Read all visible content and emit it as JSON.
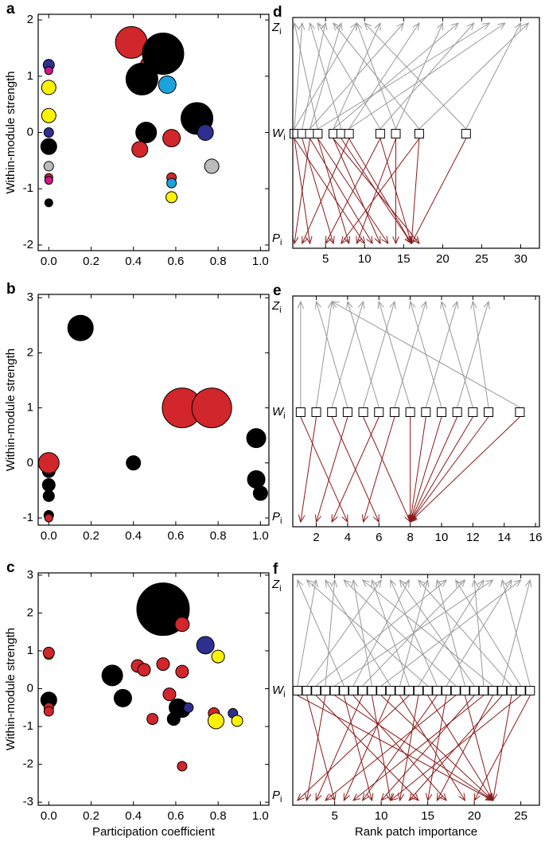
{
  "chart_data": [
    {
      "type": "scatter",
      "panel_label": "a",
      "y_label": "Within-module strength",
      "xlim": [
        -0.05,
        1.04
      ],
      "ylim": [
        -2.1,
        2.1
      ],
      "xticks": [
        {
          "value": 0,
          "label": "0.0"
        },
        {
          "value": 0.2,
          "label": "0.2"
        },
        {
          "value": 0.4,
          "label": "0.4"
        },
        {
          "value": 0.6,
          "label": "0.6"
        },
        {
          "value": 0.8,
          "label": "0.8"
        },
        {
          "value": 1,
          "label": "1.0"
        }
      ],
      "yticks": [
        -2,
        -1,
        0,
        1,
        2
      ],
      "x": [
        0.0,
        0.0,
        0.0,
        0.0,
        0.0,
        0.0,
        0.0,
        0.0,
        0.0,
        0.0,
        0.39,
        0.47,
        0.54,
        0.44,
        0.56,
        0.46,
        0.43,
        0.58,
        0.7,
        0.74,
        0.77,
        0.58,
        0.58,
        0.58
      ],
      "y": [
        1.2,
        1.1,
        0.8,
        0.3,
        0.0,
        -0.25,
        -0.6,
        -0.8,
        -0.85,
        -1.25,
        1.6,
        1.2,
        1.4,
        0.95,
        0.85,
        0.0,
        -0.3,
        -0.1,
        0.25,
        0.0,
        -0.6,
        -0.8,
        -0.9,
        -1.15
      ],
      "size": [
        7,
        5,
        9,
        9,
        6,
        10,
        6,
        5,
        5,
        5,
        20,
        10,
        26,
        20,
        11,
        13,
        10,
        11,
        20,
        10,
        9,
        6,
        6,
        7
      ],
      "colors": [
        "#2e2f8f",
        "#d4148c",
        "#fff200",
        "#fff200",
        "#2e2f8f",
        "#000000",
        "#bbbbbb",
        "#d1262b",
        "#d4148c",
        "#000000",
        "#d1262b",
        "#d1262b",
        "#000000",
        "#000000",
        "#1ca3dd",
        "#000000",
        "#d1262b",
        "#d1262b",
        "#000000",
        "#2e2f8f",
        "#bbbbbb",
        "#d1262b",
        "#1ca3dd",
        "#fff200"
      ]
    },
    {
      "type": "scatter",
      "panel_label": "b",
      "y_label": "Within-module strength",
      "xlim": [
        -0.05,
        1.04
      ],
      "ylim": [
        -1.13,
        3.06
      ],
      "xticks": [
        {
          "value": 0,
          "label": "0.0"
        },
        {
          "value": 0.2,
          "label": "0.2"
        },
        {
          "value": 0.4,
          "label": "0.4"
        },
        {
          "value": 0.6,
          "label": "0.6"
        },
        {
          "value": 0.8,
          "label": "0.8"
        },
        {
          "value": 1,
          "label": "1.0"
        }
      ],
      "yticks": [
        -1,
        0,
        1,
        2,
        3
      ],
      "x": [
        0.0,
        0.0,
        0.0,
        0.0,
        0.0,
        0.0,
        0.15,
        0.63,
        0.77,
        0.4,
        0.98,
        0.98,
        1.0
      ],
      "y": [
        -0.15,
        -0.4,
        -0.6,
        -0.95,
        0.0,
        -1.0,
        2.45,
        1.0,
        1.0,
        0.0,
        0.45,
        -0.3,
        -0.55
      ],
      "size": [
        8,
        8,
        7,
        6,
        13,
        5,
        16,
        25,
        25,
        9,
        12,
        11,
        9
      ],
      "colors": [
        "#000000",
        "#000000",
        "#000000",
        "#000000",
        "#d1262b",
        "#d1262b",
        "#000000",
        "#d1262b",
        "#d1262b",
        "#000000",
        "#000000",
        "#000000",
        "#000000"
      ]
    },
    {
      "type": "scatter",
      "panel_label": "c",
      "y_label": "Within-module strength",
      "x_label": "Participation coefficient",
      "xlim": [
        -0.05,
        1.04
      ],
      "ylim": [
        -3.08,
        3.06
      ],
      "xticks": [
        {
          "value": 0,
          "label": "0.0"
        },
        {
          "value": 0.2,
          "label": "0.2"
        },
        {
          "value": 0.4,
          "label": "0.4"
        },
        {
          "value": 0.6,
          "label": "0.6"
        },
        {
          "value": 0.8,
          "label": "0.8"
        },
        {
          "value": 1,
          "label": "1.0"
        }
      ],
      "yticks": [
        -3,
        -2,
        -1,
        0,
        1,
        2,
        3
      ],
      "x": [
        0.0,
        0.0,
        0.0,
        0.0,
        0.0,
        0.54,
        0.63,
        0.74,
        0.8,
        0.3,
        0.35,
        0.42,
        0.45,
        0.54,
        0.63,
        0.57,
        0.61,
        0.63,
        0.66,
        0.59,
        0.49,
        0.78,
        0.79,
        0.87,
        0.89,
        0.63
      ],
      "y": [
        0.9,
        0.95,
        -0.3,
        -0.5,
        -0.6,
        2.1,
        1.7,
        1.15,
        0.85,
        0.35,
        -0.25,
        0.6,
        0.5,
        0.65,
        0.45,
        -0.15,
        -0.5,
        -0.55,
        -0.5,
        -0.8,
        -0.8,
        -0.65,
        -0.85,
        -0.65,
        -0.85,
        -2.05
      ],
      "size": [
        6,
        7,
        10,
        6,
        6,
        33,
        9,
        11,
        8,
        13,
        11,
        8,
        8,
        8,
        8,
        8,
        11,
        10,
        6,
        8,
        7,
        7,
        10,
        6,
        7,
        6
      ],
      "colors": [
        "#fff200",
        "#d1262b",
        "#000000",
        "#d1262b",
        "#d1262b",
        "#000000",
        "#d1262b",
        "#2e2f8f",
        "#fff200",
        "#000000",
        "#000000",
        "#d1262b",
        "#d1262b",
        "#d1262b",
        "#d1262b",
        "#d1262b",
        "#000000",
        "#000000",
        "#2e2f8f",
        "#000000",
        "#d1262b",
        "#d1262b",
        "#fff200",
        "#2e2f8f",
        "#fff200",
        "#d1262b"
      ]
    },
    {
      "type": "network",
      "panel_label": "d",
      "row_labels": [
        {
          "main": "Z",
          "sub": "i"
        },
        {
          "main": "W",
          "sub": "i"
        },
        {
          "main": "P",
          "sub": "i"
        }
      ],
      "xlim": [
        0.8,
        32.4
      ],
      "xticks": [
        5,
        10,
        15,
        20,
        25,
        30
      ],
      "nodes": [
        1,
        2,
        3,
        4,
        6,
        7,
        8,
        12,
        14,
        17,
        23
      ],
      "z_edges": [
        [
          1,
          2
        ],
        [
          1,
          9
        ],
        [
          2,
          5
        ],
        [
          3,
          7
        ],
        [
          4,
          1
        ],
        [
          6,
          12
        ],
        [
          7,
          3
        ],
        [
          8,
          17
        ],
        [
          8,
          28
        ],
        [
          12,
          4
        ],
        [
          12,
          24
        ],
        [
          14,
          9
        ],
        [
          14,
          20
        ],
        [
          17,
          6
        ],
        [
          17,
          31
        ],
        [
          23,
          10
        ],
        [
          23,
          30
        ],
        [
          3,
          15
        ],
        [
          6,
          22
        ],
        [
          4,
          26
        ]
      ],
      "p_edges": [
        [
          1,
          3
        ],
        [
          2,
          6
        ],
        [
          3,
          1
        ],
        [
          4,
          8
        ],
        [
          6,
          12
        ],
        [
          7,
          16
        ],
        [
          8,
          2
        ],
        [
          8,
          16
        ],
        [
          12,
          5
        ],
        [
          12,
          16
        ],
        [
          14,
          14
        ],
        [
          14,
          9
        ],
        [
          17,
          16
        ],
        [
          17,
          7
        ],
        [
          23,
          16
        ],
        [
          3,
          11
        ],
        [
          6,
          17
        ],
        [
          4,
          13
        ],
        [
          1,
          10
        ]
      ]
    },
    {
      "type": "network",
      "panel_label": "e",
      "row_labels": [
        {
          "main": "Z",
          "sub": "i"
        },
        {
          "main": "W",
          "sub": "i"
        },
        {
          "main": "P",
          "sub": "i"
        }
      ],
      "xlim": [
        0.5,
        16.25
      ],
      "xticks": [
        2,
        4,
        6,
        8,
        10,
        12,
        14,
        16
      ],
      "nodes": [
        1,
        2,
        3,
        4,
        5,
        6,
        7,
        8,
        9,
        10,
        11,
        12,
        13,
        15
      ],
      "z_edges": [
        [
          1,
          1
        ],
        [
          2,
          3
        ],
        [
          3,
          5
        ],
        [
          4,
          2
        ],
        [
          5,
          7
        ],
        [
          6,
          4
        ],
        [
          7,
          9
        ],
        [
          8,
          6
        ],
        [
          9,
          11
        ],
        [
          10,
          8
        ],
        [
          11,
          13
        ],
        [
          12,
          10
        ],
        [
          13,
          12
        ],
        [
          15,
          3
        ]
      ],
      "p_edges": [
        [
          1,
          4
        ],
        [
          2,
          1
        ],
        [
          3,
          6
        ],
        [
          4,
          2
        ],
        [
          5,
          8
        ],
        [
          6,
          3
        ],
        [
          7,
          5
        ],
        [
          8,
          8
        ],
        [
          9,
          8
        ],
        [
          10,
          8
        ],
        [
          11,
          8
        ],
        [
          12,
          8
        ],
        [
          13,
          8
        ],
        [
          15,
          8
        ]
      ]
    },
    {
      "type": "network",
      "panel_label": "f",
      "x_label": "Rank patch importance",
      "row_labels": [
        {
          "main": "Z",
          "sub": "i"
        },
        {
          "main": "W",
          "sub": "i"
        },
        {
          "main": "P",
          "sub": "i"
        }
      ],
      "xlim": [
        0.5,
        27
      ],
      "xticks": [
        5,
        10,
        15,
        20,
        25
      ],
      "nodes": [
        1,
        2,
        3,
        4,
        5,
        6,
        7,
        8,
        9,
        10,
        11,
        12,
        13,
        14,
        15,
        16,
        17,
        18,
        19,
        20,
        21,
        22,
        23,
        24,
        25,
        26
      ],
      "z_edges": [
        [
          1,
          3
        ],
        [
          2,
          10
        ],
        [
          3,
          17
        ],
        [
          4,
          5
        ],
        [
          5,
          22
        ],
        [
          6,
          1
        ],
        [
          7,
          13
        ],
        [
          8,
          19
        ],
        [
          9,
          7
        ],
        [
          10,
          25
        ],
        [
          11,
          4
        ],
        [
          12,
          15
        ],
        [
          13,
          9
        ],
        [
          14,
          21
        ],
        [
          15,
          2
        ],
        [
          16,
          11
        ],
        [
          17,
          24
        ],
        [
          18,
          6
        ],
        [
          19,
          16
        ],
        [
          20,
          12
        ],
        [
          21,
          20
        ],
        [
          22,
          8
        ],
        [
          23,
          26
        ],
        [
          24,
          14
        ],
        [
          25,
          18
        ],
        [
          26,
          23
        ]
      ],
      "p_edges": [
        [
          1,
          22
        ],
        [
          2,
          5
        ],
        [
          3,
          14
        ],
        [
          4,
          2
        ],
        [
          5,
          22
        ],
        [
          6,
          9
        ],
        [
          7,
          17
        ],
        [
          8,
          3
        ],
        [
          9,
          11
        ],
        [
          10,
          22
        ],
        [
          11,
          6
        ],
        [
          12,
          19
        ],
        [
          13,
          1
        ],
        [
          14,
          12
        ],
        [
          15,
          22
        ],
        [
          16,
          8
        ],
        [
          17,
          15
        ],
        [
          18,
          4
        ],
        [
          19,
          22
        ],
        [
          20,
          10
        ],
        [
          21,
          7
        ],
        [
          22,
          16
        ],
        [
          23,
          13
        ],
        [
          24,
          22
        ],
        [
          25,
          11
        ],
        [
          26,
          20
        ]
      ]
    }
  ]
}
